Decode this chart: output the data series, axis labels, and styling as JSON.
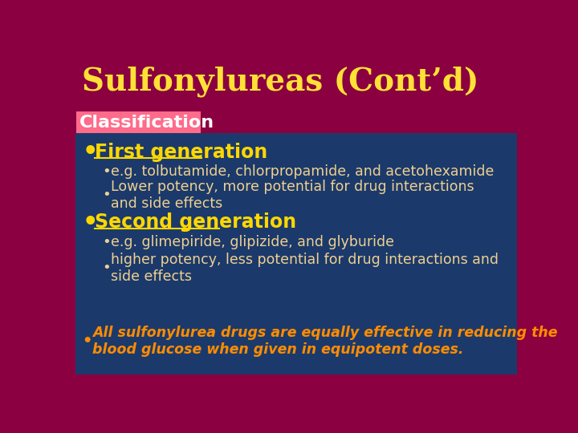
{
  "title": "Sulfonylureas (Cont’d)",
  "title_color": "#FFE135",
  "outer_bg": "#8B0040",
  "classification_label": "Classification",
  "classification_bg": "#FF6B8A",
  "classification_text_color": "#FFFFFF",
  "main_bg": "#1B3A6B",
  "bullet1_header": "First generation",
  "bullet1_header_color": "#FFD700",
  "bullet1_sub1": "e.g. tolbutamide, chlorpropamide, and acetohexamide",
  "bullet1_sub2": "Lower potency, more potential for drug interactions\nand side effects",
  "bullet1_sub_color": "#F0D090",
  "bullet2_header": "Second generation",
  "bullet2_header_color": "#FFD700",
  "bullet2_sub1": "e.g. glimepiride, glipizide, and glyburide",
  "bullet2_sub2": "higher potency, less potential for drug interactions and\nside effects",
  "bullet2_sub_color": "#F0D090",
  "bottom_bullet": "All sulfonylurea drugs are equally effective in reducing the\nblood glucose when given in equipotent doses.",
  "bottom_bullet_color": "#FF8C00",
  "header_bullet_color": "#FFD700",
  "sub_bullet_color": "#F0D090"
}
